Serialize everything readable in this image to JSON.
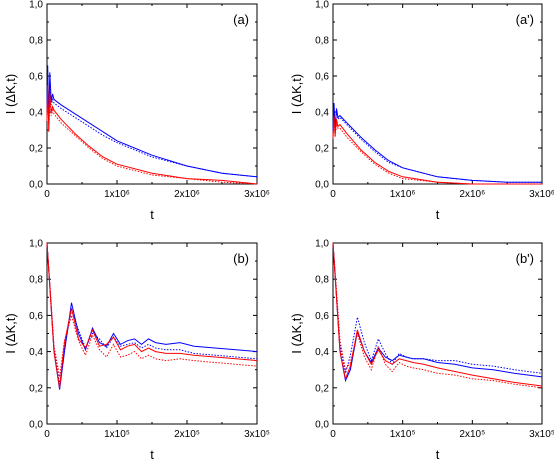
{
  "chart_data": [
    {
      "panel": "(a)",
      "type": "line",
      "xlabel": "t",
      "ylabel": "I (ΔK,t)",
      "xlim": [
        0,
        3000000
      ],
      "ylim": [
        0,
        1.0
      ],
      "x_ticks": [
        {
          "value": 0,
          "label": "0"
        },
        {
          "value": 1000000,
          "label": "1x10⁶"
        },
        {
          "value": 2000000,
          "label": "2x10⁶"
        },
        {
          "value": 3000000,
          "label": "3x10⁶"
        }
      ],
      "y_ticks": [
        {
          "value": 0,
          "label": "0,0"
        },
        {
          "value": 0.2,
          "label": "0,2"
        },
        {
          "value": 0.4,
          "label": "0,4"
        },
        {
          "value": 0.6,
          "label": "0,6"
        },
        {
          "value": 0.8,
          "label": "0,8"
        },
        {
          "value": 1.0,
          "label": "1,0"
        }
      ],
      "series": [
        {
          "color": "#0000ff",
          "dash": "solid",
          "x": [
            0,
            10000,
            25000,
            40000,
            60000,
            80000,
            100000,
            200000,
            400000,
            600000,
            800000,
            1000000,
            1500000,
            2000000,
            2500000,
            3000000
          ],
          "y": [
            0.42,
            0.66,
            0.35,
            0.62,
            0.46,
            0.5,
            0.47,
            0.44,
            0.39,
            0.34,
            0.29,
            0.24,
            0.16,
            0.1,
            0.06,
            0.04
          ]
        },
        {
          "color": "#0000ff",
          "dash": "dotted",
          "x": [
            0,
            10000,
            25000,
            40000,
            60000,
            80000,
            100000,
            200000,
            400000,
            600000,
            800000,
            1000000,
            1500000,
            2000000,
            2500000,
            3000000
          ],
          "y": [
            0.4,
            0.6,
            0.33,
            0.56,
            0.44,
            0.47,
            0.45,
            0.42,
            0.37,
            0.32,
            0.27,
            0.23,
            0.15,
            0.1,
            0.06,
            0.04
          ]
        },
        {
          "color": "#ff0000",
          "dash": "solid",
          "x": [
            0,
            10000,
            25000,
            40000,
            60000,
            80000,
            100000,
            200000,
            400000,
            600000,
            800000,
            1000000,
            1500000,
            2000000,
            2500000,
            3000000
          ],
          "y": [
            0.36,
            0.55,
            0.3,
            0.5,
            0.4,
            0.43,
            0.41,
            0.36,
            0.28,
            0.21,
            0.15,
            0.11,
            0.06,
            0.03,
            0.02,
            0.0
          ]
        },
        {
          "color": "#ff0000",
          "dash": "dotted",
          "x": [
            0,
            10000,
            25000,
            40000,
            60000,
            80000,
            100000,
            200000,
            400000,
            600000,
            800000,
            1000000,
            1500000,
            2000000,
            2500000,
            3000000
          ],
          "y": [
            0.35,
            0.52,
            0.29,
            0.47,
            0.38,
            0.41,
            0.39,
            0.34,
            0.27,
            0.2,
            0.14,
            0.1,
            0.05,
            0.03,
            0.01,
            0.0
          ]
        }
      ]
    },
    {
      "panel": "(a')",
      "type": "line",
      "xlabel": "t",
      "ylabel": "I (ΔK,t)",
      "xlim": [
        0,
        3000000
      ],
      "ylim": [
        0,
        1.0
      ],
      "x_ticks": [
        {
          "value": 0,
          "label": "0"
        },
        {
          "value": 1000000,
          "label": "1x10⁶"
        },
        {
          "value": 2000000,
          "label": "2x10⁶"
        },
        {
          "value": 3000000,
          "label": "3x10⁶"
        }
      ],
      "y_ticks": [
        {
          "value": 0,
          "label": "0,0"
        },
        {
          "value": 0.2,
          "label": "0,2"
        },
        {
          "value": 0.4,
          "label": "0,4"
        },
        {
          "value": 0.6,
          "label": "0,6"
        },
        {
          "value": 0.8,
          "label": "0,8"
        },
        {
          "value": 1.0,
          "label": "1,0"
        }
      ],
      "series": [
        {
          "color": "#0000ff",
          "dash": "solid",
          "x": [
            0,
            15000,
            30000,
            50000,
            70000,
            100000,
            200000,
            400000,
            600000,
            800000,
            1000000,
            1500000,
            2000000,
            2500000,
            3000000
          ],
          "y": [
            0.3,
            0.45,
            0.3,
            0.42,
            0.37,
            0.38,
            0.34,
            0.26,
            0.19,
            0.13,
            0.09,
            0.04,
            0.02,
            0.01,
            0.01
          ]
        },
        {
          "color": "#0000ff",
          "dash": "dotted",
          "x": [
            0,
            15000,
            30000,
            50000,
            70000,
            100000,
            200000,
            400000,
            600000,
            800000,
            1000000,
            1500000,
            2000000,
            2500000,
            3000000
          ],
          "y": [
            0.29,
            0.43,
            0.3,
            0.41,
            0.36,
            0.37,
            0.33,
            0.25,
            0.18,
            0.12,
            0.09,
            0.04,
            0.02,
            0.01,
            0.01
          ]
        },
        {
          "color": "#ff0000",
          "dash": "solid",
          "x": [
            0,
            15000,
            30000,
            50000,
            70000,
            100000,
            200000,
            400000,
            600000,
            800000,
            1000000,
            1500000,
            2000000,
            2500000,
            3000000
          ],
          "y": [
            0.26,
            0.38,
            0.27,
            0.36,
            0.32,
            0.33,
            0.28,
            0.19,
            0.12,
            0.07,
            0.04,
            0.01,
            0.0,
            0.0,
            0.0
          ]
        },
        {
          "color": "#ff0000",
          "dash": "dotted",
          "x": [
            0,
            15000,
            30000,
            50000,
            70000,
            100000,
            200000,
            400000,
            600000,
            800000,
            1000000,
            1500000,
            2000000,
            2500000,
            3000000
          ],
          "y": [
            0.25,
            0.36,
            0.26,
            0.34,
            0.31,
            0.31,
            0.26,
            0.18,
            0.11,
            0.06,
            0.03,
            0.01,
            0.0,
            0.0,
            0.0
          ]
        }
      ]
    },
    {
      "panel": "(b)",
      "type": "line",
      "xlabel": "t",
      "ylabel": "I (ΔK,t)",
      "xlim": [
        0,
        300000
      ],
      "ylim": [
        0,
        1.0
      ],
      "x_ticks": [
        {
          "value": 0,
          "label": "0"
        },
        {
          "value": 100000,
          "label": "1x10⁵"
        },
        {
          "value": 200000,
          "label": "2x10⁵"
        },
        {
          "value": 300000,
          "label": "3x10⁵"
        }
      ],
      "y_ticks": [
        {
          "value": 0,
          "label": "0,0"
        },
        {
          "value": 0.2,
          "label": "0,2"
        },
        {
          "value": 0.4,
          "label": "0,4"
        },
        {
          "value": 0.6,
          "label": "0,6"
        },
        {
          "value": 0.8,
          "label": "0,8"
        },
        {
          "value": 1.0,
          "label": "1,0"
        }
      ],
      "series": [
        {
          "color": "#0000ff",
          "dash": "solid",
          "x": [
            0,
            5000,
            10000,
            18000,
            25000,
            35000,
            45000,
            55000,
            65000,
            75000,
            85000,
            95000,
            105000,
            115000,
            125000,
            135000,
            145000,
            155000,
            170000,
            190000,
            210000,
            240000,
            270000,
            300000
          ],
          "y": [
            1.0,
            0.7,
            0.4,
            0.19,
            0.4,
            0.67,
            0.5,
            0.41,
            0.53,
            0.45,
            0.43,
            0.5,
            0.44,
            0.46,
            0.47,
            0.44,
            0.47,
            0.45,
            0.44,
            0.45,
            0.43,
            0.42,
            0.41,
            0.4
          ]
        },
        {
          "color": "#0000ff",
          "dash": "dotted",
          "x": [
            0,
            5000,
            10000,
            18000,
            25000,
            35000,
            45000,
            55000,
            65000,
            75000,
            85000,
            95000,
            105000,
            115000,
            125000,
            135000,
            145000,
            155000,
            170000,
            190000,
            210000,
            240000,
            270000,
            300000
          ],
          "y": [
            1.0,
            0.72,
            0.42,
            0.22,
            0.42,
            0.63,
            0.52,
            0.42,
            0.5,
            0.47,
            0.42,
            0.48,
            0.43,
            0.44,
            0.45,
            0.42,
            0.44,
            0.42,
            0.41,
            0.41,
            0.39,
            0.38,
            0.37,
            0.36
          ]
        },
        {
          "color": "#ff0000",
          "dash": "solid",
          "x": [
            0,
            5000,
            10000,
            18000,
            25000,
            35000,
            45000,
            55000,
            65000,
            75000,
            85000,
            95000,
            105000,
            115000,
            125000,
            135000,
            145000,
            155000,
            170000,
            190000,
            210000,
            240000,
            270000,
            300000
          ],
          "y": [
            1.0,
            0.7,
            0.4,
            0.2,
            0.45,
            0.64,
            0.47,
            0.42,
            0.52,
            0.43,
            0.44,
            0.48,
            0.41,
            0.43,
            0.44,
            0.4,
            0.42,
            0.4,
            0.39,
            0.39,
            0.38,
            0.37,
            0.36,
            0.35
          ]
        },
        {
          "color": "#ff0000",
          "dash": "dotted",
          "x": [
            0,
            5000,
            10000,
            18000,
            25000,
            35000,
            45000,
            55000,
            65000,
            75000,
            85000,
            95000,
            105000,
            115000,
            125000,
            135000,
            145000,
            155000,
            170000,
            190000,
            210000,
            240000,
            270000,
            300000
          ],
          "y": [
            1.0,
            0.72,
            0.43,
            0.26,
            0.46,
            0.6,
            0.46,
            0.38,
            0.49,
            0.41,
            0.37,
            0.44,
            0.37,
            0.38,
            0.4,
            0.36,
            0.38,
            0.36,
            0.35,
            0.36,
            0.35,
            0.34,
            0.33,
            0.32
          ]
        }
      ]
    },
    {
      "panel": "(b')",
      "type": "line",
      "xlabel": "t",
      "ylabel": "I (ΔK,t)",
      "xlim": [
        0,
        300000
      ],
      "ylim": [
        0,
        1.0
      ],
      "x_ticks": [
        {
          "value": 0,
          "label": "0"
        },
        {
          "value": 100000,
          "label": "1x10⁵"
        },
        {
          "value": 200000,
          "label": "2x10⁵"
        },
        {
          "value": 300000,
          "label": "3x10⁵"
        }
      ],
      "y_ticks": [
        {
          "value": 0,
          "label": "0,0"
        },
        {
          "value": 0.2,
          "label": "0,2"
        },
        {
          "value": 0.4,
          "label": "0,4"
        },
        {
          "value": 0.6,
          "label": "0,6"
        },
        {
          "value": 0.8,
          "label": "0,8"
        },
        {
          "value": 1.0,
          "label": "1,0"
        }
      ],
      "series": [
        {
          "color": "#0000ff",
          "dash": "solid",
          "x": [
            0,
            5000,
            10000,
            18000,
            25000,
            35000,
            45000,
            55000,
            65000,
            75000,
            85000,
            95000,
            105000,
            115000,
            130000,
            150000,
            175000,
            200000,
            230000,
            260000,
            300000
          ],
          "y": [
            1.0,
            0.7,
            0.4,
            0.24,
            0.3,
            0.51,
            0.4,
            0.34,
            0.42,
            0.37,
            0.35,
            0.38,
            0.37,
            0.36,
            0.36,
            0.34,
            0.33,
            0.31,
            0.3,
            0.28,
            0.26
          ]
        },
        {
          "color": "#0000ff",
          "dash": "dotted",
          "x": [
            0,
            5000,
            10000,
            18000,
            25000,
            35000,
            45000,
            55000,
            65000,
            75000,
            85000,
            95000,
            105000,
            115000,
            130000,
            150000,
            175000,
            200000,
            230000,
            260000,
            300000
          ],
          "y": [
            1.0,
            0.72,
            0.43,
            0.28,
            0.38,
            0.59,
            0.45,
            0.35,
            0.47,
            0.39,
            0.33,
            0.39,
            0.37,
            0.36,
            0.36,
            0.35,
            0.35,
            0.33,
            0.32,
            0.3,
            0.28
          ]
        },
        {
          "color": "#ff0000",
          "dash": "solid",
          "x": [
            0,
            5000,
            10000,
            18000,
            25000,
            35000,
            45000,
            55000,
            65000,
            75000,
            85000,
            95000,
            105000,
            115000,
            130000,
            150000,
            175000,
            200000,
            230000,
            260000,
            300000
          ],
          "y": [
            1.0,
            0.7,
            0.4,
            0.25,
            0.32,
            0.52,
            0.4,
            0.33,
            0.41,
            0.35,
            0.33,
            0.36,
            0.35,
            0.34,
            0.33,
            0.31,
            0.29,
            0.27,
            0.25,
            0.23,
            0.21
          ]
        },
        {
          "color": "#ff0000",
          "dash": "dotted",
          "x": [
            0,
            5000,
            10000,
            18000,
            25000,
            35000,
            45000,
            55000,
            65000,
            75000,
            85000,
            95000,
            105000,
            115000,
            130000,
            150000,
            175000,
            200000,
            230000,
            260000,
            300000
          ],
          "y": [
            1.0,
            0.74,
            0.46,
            0.3,
            0.34,
            0.5,
            0.37,
            0.3,
            0.43,
            0.33,
            0.29,
            0.34,
            0.32,
            0.31,
            0.3,
            0.28,
            0.27,
            0.25,
            0.24,
            0.22,
            0.2
          ]
        }
      ]
    }
  ]
}
